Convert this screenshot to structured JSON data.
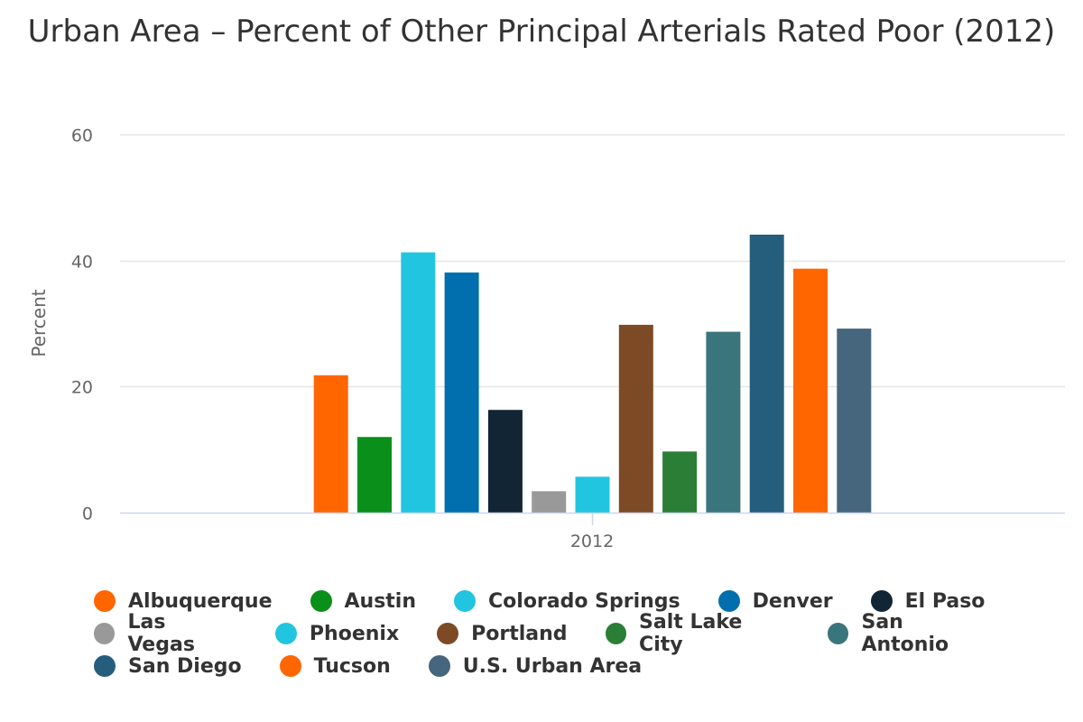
{
  "chart_data": {
    "type": "bar",
    "title": "Urban Area – Percent of Other Principal Arterials Rated Poor (2012)",
    "xlabel": "",
    "ylabel": "Percent",
    "categories": [
      "2012"
    ],
    "ylim": [
      0,
      60
    ],
    "yticks": [
      0,
      20,
      40,
      60
    ],
    "grid": true,
    "legend_position": "bottom",
    "series": [
      {
        "name": "Albuquerque",
        "color": "#ff6600",
        "values": [
          21.8
        ]
      },
      {
        "name": "Austin",
        "color": "#0a8f1a",
        "values": [
          12.0
        ]
      },
      {
        "name": "Colorado Springs",
        "color": "#22c5e0",
        "values": [
          41.3
        ]
      },
      {
        "name": "Denver",
        "color": "#016fae",
        "values": [
          38.1
        ]
      },
      {
        "name": "El Paso",
        "color": "#112535",
        "values": [
          16.3
        ]
      },
      {
        "name": "Las Vegas",
        "color": "#999999",
        "values": [
          3.4
        ]
      },
      {
        "name": "Phoenix",
        "color": "#22c5e0",
        "values": [
          5.7
        ]
      },
      {
        "name": "Portland",
        "color": "#7c4a25",
        "values": [
          29.8
        ]
      },
      {
        "name": "Salt Lake City",
        "color": "#2a7e35",
        "values": [
          9.7
        ]
      },
      {
        "name": "San Antonio",
        "color": "#3a757c",
        "values": [
          28.7
        ]
      },
      {
        "name": "San Diego",
        "color": "#255e7d",
        "values": [
          44.1
        ]
      },
      {
        "name": "Tucson",
        "color": "#ff6600",
        "values": [
          38.7
        ]
      },
      {
        "name": "U.S. Urban Area",
        "color": "#45667c",
        "values": [
          29.2
        ]
      }
    ]
  },
  "legend_rows": [
    [
      0,
      1,
      2,
      3,
      4
    ],
    [
      5,
      6,
      7,
      8,
      9
    ],
    [
      10,
      11,
      12
    ]
  ]
}
